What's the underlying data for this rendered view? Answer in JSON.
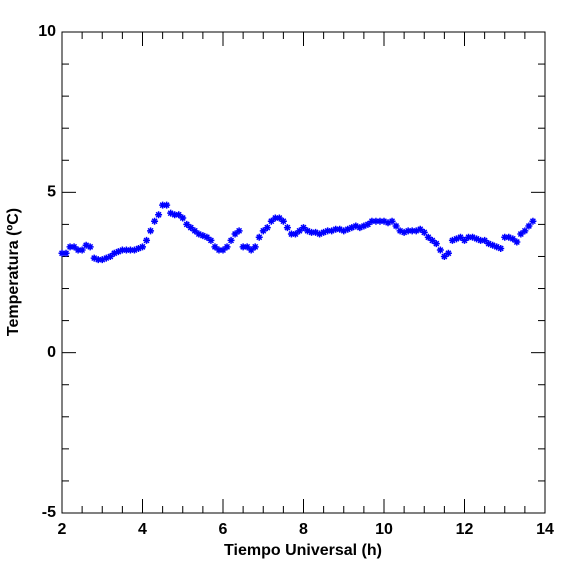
{
  "chart_data": {
    "type": "scatter",
    "x_label": "Tiempo Universal (h)",
    "y_label": "Temperatura (ºC)",
    "color": "#0000ff",
    "xlim": [
      2,
      14
    ],
    "ylim": [
      -5,
      10
    ],
    "xticks": [
      2,
      4,
      6,
      8,
      10,
      12,
      14
    ],
    "yticks": [
      -5,
      0,
      5,
      10
    ],
    "xminorticks": [
      2.5,
      3,
      3.5,
      4.5,
      5,
      5.5,
      6.5,
      7,
      7.5,
      8.5,
      9,
      9.5,
      10.5,
      11,
      11.5,
      12.5,
      13,
      13.5
    ],
    "yminorticks": [
      -4,
      -3,
      -2,
      -1,
      1,
      2,
      3,
      4,
      6,
      7,
      8,
      9
    ],
    "x": [
      2.0,
      2.1,
      2.2,
      2.3,
      2.4,
      2.5,
      2.6,
      2.7,
      2.8,
      2.9,
      3.0,
      3.1,
      3.2,
      3.3,
      3.4,
      3.5,
      3.6,
      3.7,
      3.8,
      3.9,
      4.0,
      4.1,
      4.2,
      4.3,
      4.4,
      4.5,
      4.6,
      4.7,
      4.8,
      4.9,
      5.0,
      5.1,
      5.2,
      5.3,
      5.4,
      5.5,
      5.6,
      5.7,
      5.8,
      5.9,
      6.0,
      6.1,
      6.2,
      6.3,
      6.4,
      6.5,
      6.6,
      6.7,
      6.8,
      6.9,
      7.0,
      7.1,
      7.2,
      7.3,
      7.4,
      7.5,
      7.6,
      7.7,
      7.8,
      7.9,
      8.0,
      8.1,
      8.2,
      8.3,
      8.4,
      8.5,
      8.6,
      8.7,
      8.8,
      8.9,
      9.0,
      9.1,
      9.2,
      9.3,
      9.4,
      9.5,
      9.6,
      9.7,
      9.8,
      9.9,
      10.0,
      10.1,
      10.2,
      10.3,
      10.4,
      10.5,
      10.6,
      10.7,
      10.8,
      10.9,
      11.0,
      11.1,
      11.2,
      11.3,
      11.4,
      11.5,
      11.6,
      11.7,
      11.8,
      11.9,
      12.0,
      12.1,
      12.2,
      12.3,
      12.4,
      12.5,
      12.6,
      12.7,
      12.8,
      12.9,
      13.0,
      13.1,
      13.2,
      13.3,
      13.4,
      13.5,
      13.6,
      13.7
    ],
    "values": [
      3.1,
      3.1,
      3.3,
      3.3,
      3.2,
      3.2,
      3.35,
      3.3,
      2.95,
      2.9,
      2.9,
      2.95,
      3.0,
      3.1,
      3.15,
      3.2,
      3.2,
      3.2,
      3.2,
      3.25,
      3.3,
      3.5,
      3.8,
      4.1,
      4.3,
      4.6,
      4.6,
      4.35,
      4.3,
      4.3,
      4.2,
      4.0,
      3.9,
      3.8,
      3.7,
      3.65,
      3.6,
      3.5,
      3.3,
      3.2,
      3.2,
      3.3,
      3.5,
      3.7,
      3.8,
      3.3,
      3.3,
      3.2,
      3.3,
      3.6,
      3.8,
      3.9,
      4.1,
      4.2,
      4.2,
      4.1,
      3.9,
      3.7,
      3.7,
      3.8,
      3.9,
      3.8,
      3.75,
      3.75,
      3.7,
      3.75,
      3.8,
      3.8,
      3.85,
      3.85,
      3.8,
      3.85,
      3.9,
      3.95,
      3.9,
      3.95,
      4.0,
      4.1,
      4.1,
      4.1,
      4.1,
      4.05,
      4.1,
      3.95,
      3.8,
      3.75,
      3.8,
      3.8,
      3.8,
      3.85,
      3.75,
      3.6,
      3.5,
      3.4,
      3.2,
      3.0,
      3.1,
      3.5,
      3.55,
      3.6,
      3.5,
      3.6,
      3.6,
      3.55,
      3.5,
      3.5,
      3.4,
      3.35,
      3.3,
      3.25,
      3.6,
      3.6,
      3.55,
      3.45,
      3.7,
      3.8,
      3.95,
      4.1
    ]
  }
}
